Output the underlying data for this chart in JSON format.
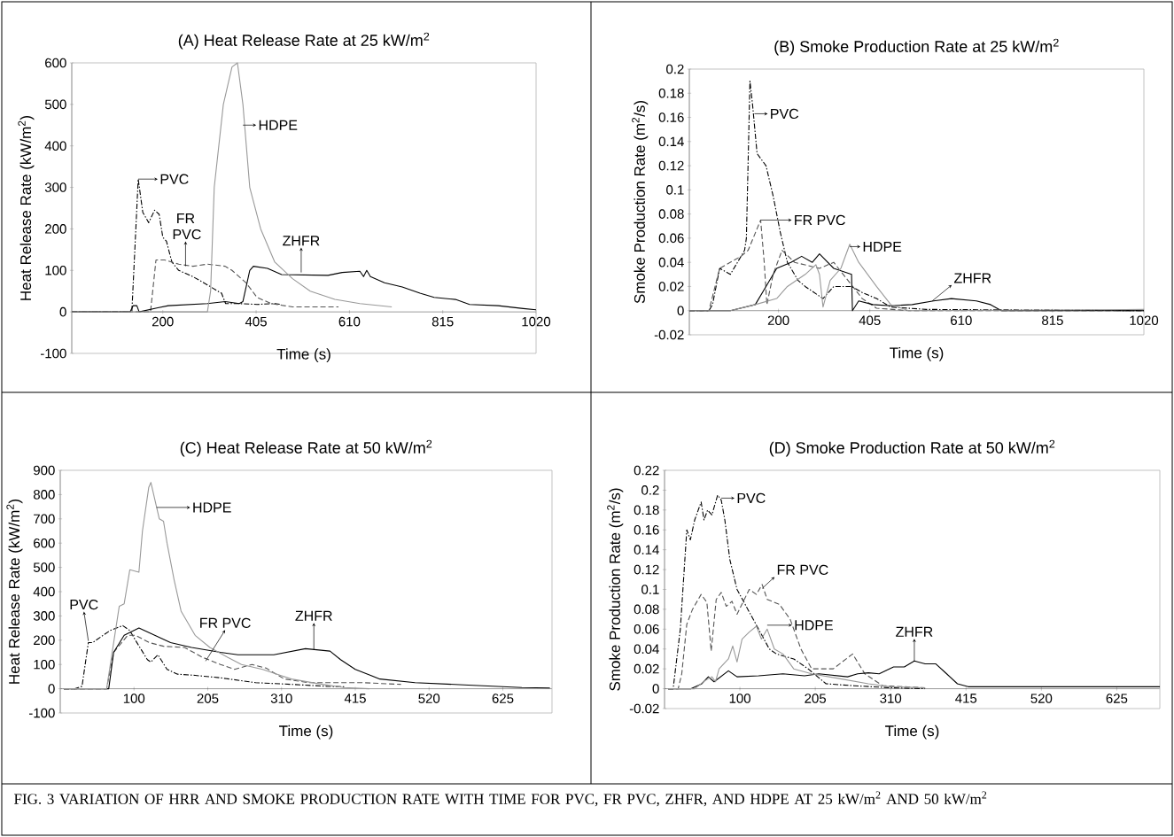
{
  "chart_data": [
    {
      "type": "line",
      "title": "(A) Heat Release Rate at 25 kW/m$^{2}$",
      "xlabel": "Time (s)",
      "ylabel": "Heat Release Rate (kW/m$^{2}$)",
      "xlim": [
        0,
        1020
      ],
      "xticks": [
        200,
        405,
        610,
        815,
        1020
      ],
      "ylim": [
        -100,
        600
      ],
      "yticks": [
        -100,
        0,
        100,
        200,
        300,
        400,
        500,
        600
      ],
      "series": [
        {
          "color": "#000000",
          "line_style": "dashdot",
          "x": [
            0,
            132,
            146,
            156,
            169,
            182,
            192,
            200,
            208,
            220,
            235,
            266,
            298,
            321,
            329,
            338,
            368,
            407,
            446,
            461
          ],
          "values": [
            0,
            0,
            320,
            240,
            215,
            245,
            235,
            180,
            170,
            120,
            100,
            85,
            65,
            50,
            45,
            20,
            20,
            18,
            20,
            18
          ]
        },
        {
          "color": "#555555",
          "line_style": "dashed",
          "x": [
            0,
            173,
            185,
            204,
            235,
            266,
            298,
            337,
            352,
            383,
            407,
            438,
            485,
            586
          ],
          "values": [
            0,
            0,
            125,
            125,
            115,
            110,
            115,
            110,
            100,
            70,
            35,
            20,
            12,
            12
          ]
        },
        {
          "color": "#000000",
          "line_style": "solid",
          "x": [
            0,
            128,
            135,
            143,
            148,
            189,
            212,
            298,
            337,
            368,
            376,
            391,
            399,
            430,
            461,
            563,
            594,
            633,
            641,
            648,
            656,
            687,
            726,
            765,
            796,
            843,
            874,
            937,
            992,
            1020
          ],
          "values": [
            0,
            0,
            15,
            15,
            0,
            10,
            15,
            20,
            25,
            20,
            25,
            100,
            110,
            105,
            90,
            88,
            95,
            98,
            85,
            100,
            85,
            70,
            60,
            45,
            35,
            30,
            18,
            15,
            8,
            5
          ]
        },
        {
          "color": "#999999",
          "line_style": "solid",
          "x": [
            0,
            298,
            305,
            313,
            333,
            352,
            364,
            376,
            391,
            415,
            446,
            485,
            524,
            578,
            633,
            703
          ],
          "values": [
            0,
            0,
            50,
            300,
            500,
            590,
            600,
            500,
            300,
            200,
            120,
            80,
            50,
            30,
            20,
            12
          ]
        }
      ],
      "annotations": [
        {
          "text": "PVC",
          "x": 146,
          "y": 320
        },
        {
          "text": "FR PVC",
          "x": 250,
          "y": 110
        },
        {
          "text": "HDPE",
          "x": 376,
          "y": 450
        },
        {
          "text": "ZHFR",
          "x": 504,
          "y": 95
        }
      ]
    },
    {
      "type": "line",
      "title": "(B) Smoke Production Rate at 25 kW/m$^{2}$",
      "xlabel": "Time (s)",
      "ylabel": "Smoke Production Rate (m$^{2}$/s)",
      "xlim": [
        0,
        1020
      ],
      "xticks": [
        200,
        405,
        610,
        815,
        1020
      ],
      "ylim": [
        -0.02,
        0.2
      ],
      "yticks": [
        -0.02,
        0,
        0.02,
        0.04,
        0.06,
        0.08,
        0.1,
        0.12,
        0.14,
        0.16,
        0.18,
        0.2
      ],
      "series": [
        {
          "color": "#000000",
          "line_style": "dashdot",
          "x": [
            0,
            44,
            52,
            68,
            92,
            108,
            124,
            128,
            136,
            142,
            152,
            172,
            188,
            204,
            220,
            244,
            260,
            292,
            300,
            324,
            364,
            388,
            420,
            452,
            532,
            1020
          ],
          "values": [
            0,
            0,
            0.005,
            0.035,
            0.03,
            0.04,
            0.05,
            0.06,
            0.19,
            0.17,
            0.13,
            0.12,
            0.095,
            0.065,
            0.04,
            0.025,
            0.02,
            0.012,
            0.01,
            0.02,
            0.02,
            0.015,
            0.01,
            0.003,
            0.001,
            0
          ]
        },
        {
          "color": "#555555",
          "line_style": "dashed",
          "x": [
            0,
            44,
            68,
            116,
            132,
            160,
            168,
            174,
            188,
            208,
            236,
            292,
            324,
            356,
            388,
            420,
            492,
            1020
          ],
          "values": [
            0,
            0,
            0.035,
            0.045,
            0.05,
            0.075,
            0.04,
            0.005,
            0.03,
            0.05,
            0.04,
            0.035,
            0.04,
            0.025,
            0.01,
            0.002,
            0,
            0
          ]
        },
        {
          "color": "#000000",
          "line_style": "solid",
          "x": [
            0,
            92,
            148,
            172,
            196,
            228,
            252,
            276,
            292,
            324,
            364,
            366,
            380,
            412,
            452,
            500,
            548,
            588,
            644,
            676,
            700,
            1020
          ],
          "values": [
            0,
            0,
            0.005,
            0.02,
            0.035,
            0.04,
            0.045,
            0.04,
            0.047,
            0.035,
            0.03,
            0,
            0.008,
            0.005,
            0.004,
            0.005,
            0.008,
            0.01,
            0.008,
            0.005,
            0,
            0
          ]
        },
        {
          "color": "#999999",
          "line_style": "solid",
          "x": [
            0,
            92,
            148,
            196,
            220,
            260,
            284,
            292,
            300,
            316,
            340,
            360,
            380,
            420,
            452,
            492,
            1020
          ],
          "values": [
            0,
            0,
            0.005,
            0.01,
            0.02,
            0.03,
            0.038,
            0.03,
            0.003,
            0.025,
            0.035,
            0.055,
            0.04,
            0.02,
            0.005,
            0,
            0.001
          ]
        }
      ],
      "annotations": [
        {
          "text": "PVC",
          "x": 146,
          "y": 0.163
        },
        {
          "text": "FR PVC",
          "x": 160,
          "y": 0.075
        },
        {
          "text": "HDPE",
          "x": 360,
          "y": 0.053
        },
        {
          "text": "ZHFR",
          "x": 545,
          "y": 0.008
        }
      ]
    },
    {
      "type": "line",
      "title": "(C) Heat Release Rate at 50 kW/m$^{2}$",
      "xlabel": "Time (s)",
      "ylabel": "Heat Release Rate (kW/m$^{2}$)",
      "xlim": [
        -5,
        695
      ],
      "xticks": [
        100,
        205,
        310,
        415,
        520,
        625
      ],
      "ylim": [
        -100,
        900
      ],
      "yticks": [
        -100,
        0,
        100,
        200,
        300,
        400,
        500,
        600,
        700,
        800,
        900
      ],
      "series": [
        {
          "color": "#000000",
          "line_style": "dashdot",
          "x": [
            0,
            16,
            26,
            35,
            41,
            66,
            84,
            94,
            102,
            119,
            124,
            134,
            147,
            162,
            187,
            223,
            248,
            273,
            324,
            374,
            399
          ],
          "values": [
            0,
            0,
            10,
            190,
            190,
            240,
            260,
            240,
            200,
            120,
            110,
            140,
            80,
            60,
            55,
            45,
            35,
            25,
            18,
            10,
            8
          ]
        },
        {
          "color": "#555555",
          "line_style": "dashed",
          "x": [
            0,
            61,
            71,
            91,
            102,
            122,
            142,
            172,
            197,
            223,
            243,
            268,
            288,
            314,
            349,
            425,
            480
          ],
          "values": [
            0,
            0,
            150,
            220,
            220,
            190,
            175,
            170,
            130,
            100,
            80,
            100,
            85,
            40,
            25,
            25,
            18
          ]
        },
        {
          "color": "#000000",
          "line_style": "solid",
          "x": [
            0,
            64,
            71,
            86,
            107,
            122,
            152,
            182,
            223,
            248,
            299,
            344,
            379,
            394,
            415,
            450,
            500,
            576,
            652,
            692
          ],
          "values": [
            0,
            0,
            150,
            220,
            250,
            230,
            190,
            170,
            150,
            140,
            140,
            165,
            155,
            120,
            80,
            40,
            25,
            15,
            5,
            3
          ]
        },
        {
          "color": "#999999",
          "line_style": "solid",
          "x": [
            0,
            61,
            79,
            86,
            94,
            107,
            112,
            121,
            124,
            136,
            142,
            147,
            157,
            167,
            187,
            208,
            233,
            253,
            283,
            324,
            364,
            399,
            435
          ],
          "values": [
            0,
            0,
            340,
            350,
            490,
            480,
            650,
            830,
            850,
            700,
            690,
            600,
            450,
            320,
            220,
            170,
            130,
            100,
            80,
            40,
            20,
            5,
            0
          ]
        }
      ],
      "annotations": [
        {
          "text": "HDPE",
          "x": 132,
          "y": 747
        },
        {
          "text": "PVC",
          "x": 35,
          "y": 197
        },
        {
          "text": "FR PVC",
          "x": 202,
          "y": 114
        },
        {
          "text": "ZHFR",
          "x": 356,
          "y": 162
        }
      ]
    },
    {
      "type": "line",
      "title": "(D) Smoke Production Rate at 50 kW/m$^{2}$",
      "xlabel": "Time (s)",
      "ylabel": "Smoke Production Rate (m$^{2}$/s)",
      "xlim": [
        -5,
        685
      ],
      "xticks": [
        100,
        205,
        310,
        415,
        520,
        625
      ],
      "ylim": [
        -0.02,
        0.22
      ],
      "yticks": [
        -0.02,
        0,
        0.02,
        0.04,
        0.06,
        0.08,
        0.1,
        0.12,
        0.14,
        0.16,
        0.18,
        0.2,
        0.22
      ],
      "series": [
        {
          "color": "#000000",
          "line_style": "dashdot",
          "x": [
            0,
            7,
            17,
            26,
            31,
            37,
            46,
            50,
            55,
            61,
            69,
            74,
            79,
            86,
            96,
            111,
            126,
            141,
            151,
            175,
            195,
            220,
            259,
            309,
            358
          ],
          "values": [
            0,
            0,
            0.06,
            0.16,
            0.15,
            0.17,
            0.188,
            0.17,
            0.18,
            0.175,
            0.195,
            0.19,
            0.17,
            0.13,
            0.1,
            0.08,
            0.06,
            0.04,
            0.035,
            0.03,
            0.02,
            0.005,
            0.003,
            0.001,
            0
          ]
        },
        {
          "color": "#555555",
          "line_style": "dashed",
          "x": [
            0,
            14,
            19,
            26,
            34,
            46,
            54,
            60,
            67,
            74,
            81,
            89,
            96,
            113,
            123,
            131,
            138,
            155,
            170,
            185,
            200,
            230,
            257,
            274,
            299,
            358
          ],
          "values": [
            0,
            0,
            0.015,
            0.065,
            0.08,
            0.095,
            0.087,
            0.038,
            0.09,
            0.097,
            0.083,
            0.088,
            0.075,
            0.1,
            0.095,
            0.105,
            0.09,
            0.085,
            0.07,
            0.04,
            0.02,
            0.02,
            0.035,
            0.015,
            0.003,
            0.001
          ]
        },
        {
          "color": "#000000",
          "line_style": "solid",
          "x": [
            0,
            32,
            47,
            56,
            64,
            84,
            96,
            126,
            160,
            190,
            210,
            250,
            264,
            279,
            294,
            314,
            329,
            343,
            358,
            373,
            388,
            403,
            418,
            685
          ],
          "values": [
            0,
            0,
            0.005,
            0.012,
            0.007,
            0.018,
            0.012,
            0.013,
            0.015,
            0.013,
            0.015,
            0.012,
            0.015,
            0.016,
            0.015,
            0.022,
            0.022,
            0.028,
            0.025,
            0.025,
            0.015,
            0.005,
            0.002,
            0.002
          ]
        },
        {
          "color": "#999999",
          "line_style": "solid",
          "x": [
            0,
            37,
            51,
            61,
            66,
            71,
            84,
            90,
            96,
            103,
            113,
            123,
            130,
            138,
            148,
            160,
            175,
            200,
            240,
            279,
            309,
            358
          ],
          "values": [
            0,
            0,
            0.008,
            0.012,
            0.007,
            0.02,
            0.03,
            0.043,
            0.027,
            0.05,
            0.057,
            0.063,
            0.05,
            0.06,
            0.04,
            0.035,
            0.02,
            0.015,
            0.01,
            0.005,
            0.002,
            0.001
          ]
        }
      ],
      "annotations": [
        {
          "text": "PVC",
          "x": 74,
          "y": 0.192
        },
        {
          "text": "FR PVC",
          "x": 131,
          "y": 0.101
        },
        {
          "text": "HDPE",
          "x": 138,
          "y": 0.064
        },
        {
          "text": "ZHFR",
          "x": 343,
          "y": 0.028
        },
        "FIG. 3    VARIATION OF HRR AND SMOKE PRODUCTION RATE WITH TIME FOR PVC, FR PVC, ZHFR, AND HDPE AT 25 kW/m$^{2}$ AND 50 kW/m$^{2}$"
      ]
    }
  ]
}
